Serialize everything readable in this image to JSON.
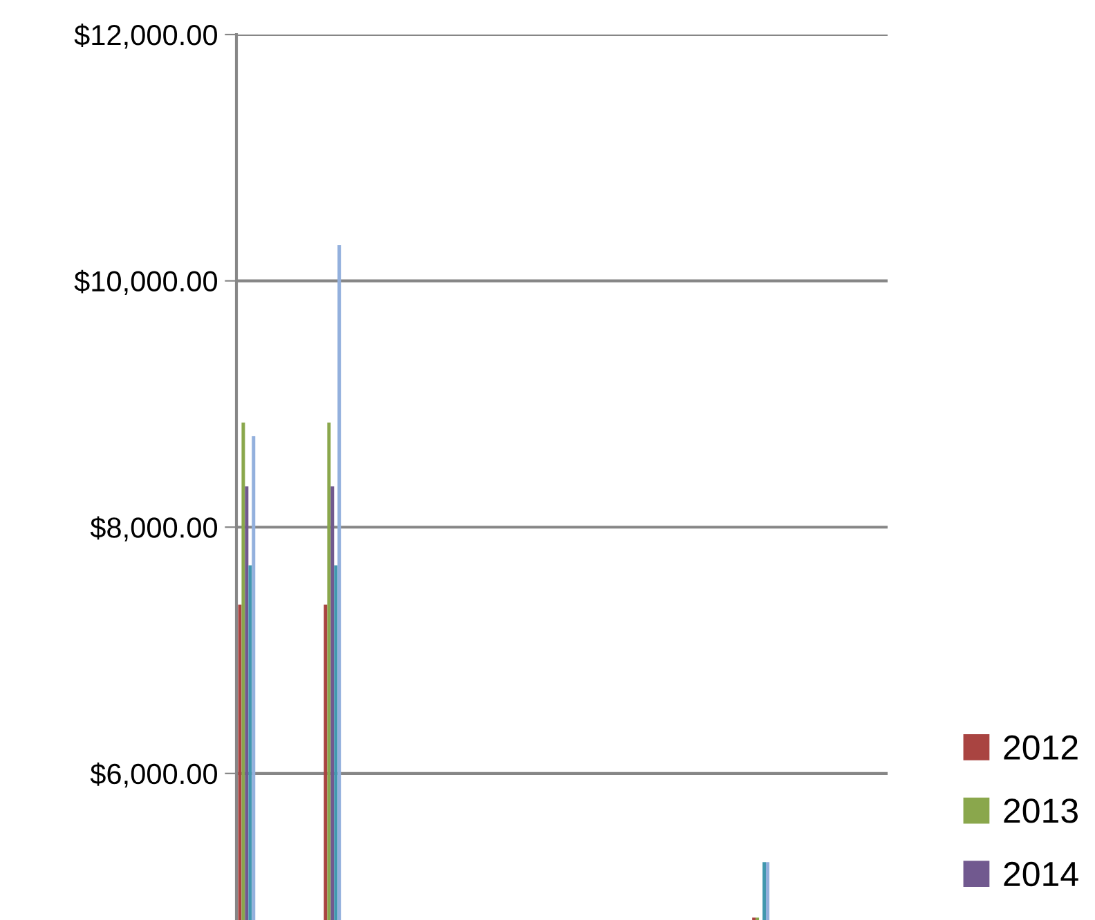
{
  "chart_data": {
    "type": "bar",
    "categories": [
      null,
      null,
      null,
      null,
      null,
      null,
      null,
      null
    ],
    "series": [
      {
        "name": "2012",
        "color": "#a94441",
        "values": [
          7370,
          7370,
          null,
          null,
          null,
          null,
          4830,
          null
        ]
      },
      {
        "name": "2013",
        "color": "#8aa74c",
        "values": [
          8850,
          8850,
          null,
          null,
          null,
          null,
          4830,
          null
        ]
      },
      {
        "name": "2014",
        "color": "#71598f",
        "values": [
          8330,
          8330,
          null,
          null,
          null,
          null,
          null,
          null
        ]
      },
      {
        "color": "#4198af",
        "values": [
          7690,
          7690,
          null,
          null,
          null,
          null,
          5280,
          null
        ]
      },
      {
        "color": "#93b0dd",
        "values": [
          8740,
          10290,
          null,
          null,
          null,
          null,
          5280,
          null
        ]
      }
    ],
    "ylim": [
      4810,
      12000
    ],
    "yticks": [
      {
        "value": 6000,
        "label": "$6,000.00"
      },
      {
        "value": 8000,
        "label": "$8,000.00"
      },
      {
        "value": 10000,
        "label": "$10,000.00"
      },
      {
        "value": 12000,
        "label": "$12,000.00"
      }
    ],
    "grid": "y",
    "legend": "right",
    "tick_labels": "y"
  }
}
